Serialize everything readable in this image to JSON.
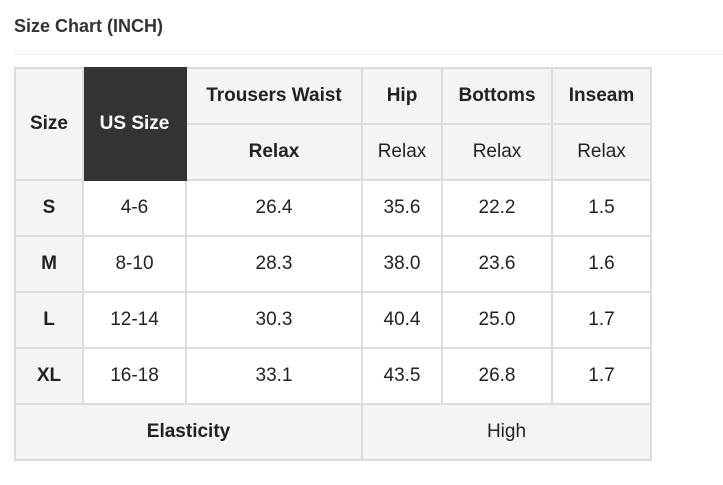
{
  "title": "Size Chart (INCH)",
  "header": {
    "size": "Size",
    "us_size": "US Size",
    "waist": "Trousers Waist",
    "hip": "Hip",
    "bottoms": "Bottoms",
    "inseam": "Inseam",
    "relax": "Relax"
  },
  "rows": [
    [
      "S",
      "4-6",
      "26.4",
      "35.6",
      "22.2",
      "1.5"
    ],
    [
      "M",
      "8-10",
      "28.3",
      "38.0",
      "23.6",
      "1.6"
    ],
    [
      "L",
      "12-14",
      "30.3",
      "40.4",
      "25.0",
      "1.7"
    ],
    [
      "XL",
      "16-18",
      "33.1",
      "43.5",
      "26.8",
      "1.7"
    ]
  ],
  "footer": {
    "label": "Elasticity",
    "value": "High"
  }
}
